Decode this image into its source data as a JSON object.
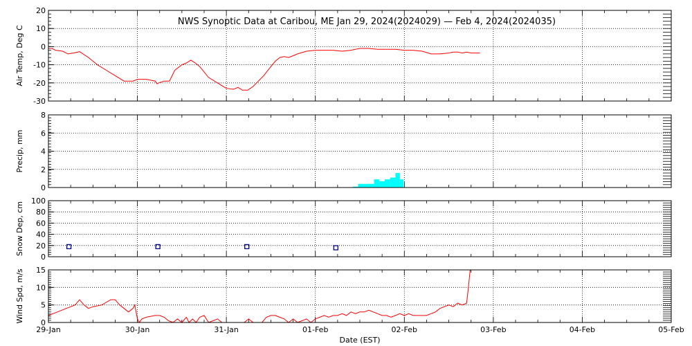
{
  "title": "NWS Synoptic Data at Caribou, ME   Jan 29, 2024(2024029) — Feb  4, 2024(2024035)",
  "xlabel": "Date (EST)",
  "colors": {
    "temp": "#ff0000",
    "precip": "#00ffff",
    "snow": "#00008b",
    "wind": "#ff0000",
    "axis": "#000000"
  },
  "chart_data": [
    {
      "type": "line",
      "ylabel": "Air Temp, Deg C",
      "ylim": [
        -30,
        20
      ],
      "yticks": [
        20,
        10,
        0,
        -10,
        -20,
        -30
      ],
      "x_unit": "days after Jan 29 00:00 EST",
      "series": [
        {
          "x": [
            0,
            0.04,
            0.08,
            0.16,
            0.22,
            0.28,
            0.35,
            0.45,
            0.55,
            0.65,
            0.75,
            0.85,
            0.95,
            1.0,
            1.1,
            1.2,
            1.22,
            1.24,
            1.3,
            1.36,
            1.42,
            1.5,
            1.55,
            1.6,
            1.65,
            1.7,
            1.75,
            1.8,
            1.9,
            2.0,
            2.08,
            2.13,
            2.18,
            2.24,
            2.3,
            2.36,
            2.42,
            2.5,
            2.55,
            2.6,
            2.65,
            2.7,
            2.75,
            2.8,
            2.9,
            3.0,
            3.1,
            3.2,
            3.3,
            3.4,
            3.5,
            3.6,
            3.7,
            3.8,
            3.9,
            4.0,
            4.1,
            4.2,
            4.3,
            4.4,
            4.5,
            4.55,
            4.6,
            4.65,
            4.7,
            4.75,
            4.8,
            4.85
          ],
          "y": [
            -1,
            -1,
            -2,
            -2.5,
            -4,
            -3.5,
            -2.8,
            -6,
            -10,
            -13,
            -16,
            -19,
            -19,
            -18,
            -18,
            -19,
            -20.5,
            -20,
            -19,
            -19,
            -13,
            -10,
            -9,
            -7.5,
            -9,
            -11,
            -14,
            -17,
            -20,
            -23,
            -23.5,
            -22.5,
            -24,
            -24,
            -22,
            -19,
            -16,
            -11,
            -8,
            -6,
            -5.5,
            -6,
            -5,
            -4,
            -2.5,
            -2,
            -2,
            -2,
            -2.5,
            -2,
            -1,
            -1,
            -1.5,
            -1.5,
            -1.5,
            -2,
            -2,
            -2.5,
            -4,
            -4,
            -3.5,
            -3,
            -3,
            -3.5,
            -3,
            -3.5,
            -3.5,
            -3.5
          ]
        }
      ]
    },
    {
      "type": "bar",
      "ylabel": "Precip, mm",
      "ylim": [
        0,
        8
      ],
      "yticks": [
        8,
        6,
        4,
        2,
        0
      ],
      "x_unit": "days after Jan 29 00:00 EST",
      "bars": [
        {
          "x0": 3.42,
          "x1": 3.48,
          "value": 0.1
        },
        {
          "x0": 3.48,
          "x1": 3.54,
          "value": 0.4
        },
        {
          "x0": 3.54,
          "x1": 3.6,
          "value": 0.4
        },
        {
          "x0": 3.6,
          "x1": 3.66,
          "value": 0.4
        },
        {
          "x0": 3.66,
          "x1": 3.72,
          "value": 0.9
        },
        {
          "x0": 3.72,
          "x1": 3.78,
          "value": 0.7
        },
        {
          "x0": 3.78,
          "x1": 3.84,
          "value": 0.9
        },
        {
          "x0": 3.84,
          "x1": 3.9,
          "value": 1.1
        },
        {
          "x0": 3.9,
          "x1": 3.95,
          "value": 1.6
        },
        {
          "x0": 3.95,
          "x1": 3.99,
          "value": 0.9
        }
      ]
    },
    {
      "type": "scatter",
      "ylabel": "Snow Dep, cm",
      "ylim": [
        0,
        100
      ],
      "yticks": [
        100,
        80,
        60,
        40,
        20,
        0
      ],
      "x_unit": "days after Jan 29 00:00 EST",
      "points": [
        {
          "x": 0.23,
          "y": 18
        },
        {
          "x": 1.23,
          "y": 18
        },
        {
          "x": 2.23,
          "y": 18
        },
        {
          "x": 3.23,
          "y": 16
        }
      ]
    },
    {
      "type": "line",
      "ylabel": "Wind Spd, m/s",
      "ylim": [
        0,
        15
      ],
      "yticks": [
        15,
        10,
        5,
        0
      ],
      "x_unit": "days after Jan 29 00:00 EST",
      "xticks": [
        "29-Jan",
        "30-Jan",
        "31-Jan",
        "01-Feb",
        "02-Feb",
        "03-Feb",
        "04-Feb",
        "05-Feb"
      ],
      "series": [
        {
          "x": [
            0,
            0.05,
            0.1,
            0.2,
            0.3,
            0.35,
            0.4,
            0.45,
            0.5,
            0.6,
            0.7,
            0.75,
            0.8,
            0.85,
            0.9,
            0.95,
            0.97,
            1.0,
            1.02,
            1.05,
            1.1,
            1.2,
            1.25,
            1.3,
            1.35,
            1.4,
            1.45,
            1.5,
            1.55,
            1.58,
            1.62,
            1.66,
            1.7,
            1.75,
            1.8,
            1.85,
            1.9,
            1.95,
            2.0,
            2.05,
            2.1,
            2.15,
            2.2,
            2.25,
            2.3,
            2.35,
            2.4,
            2.45,
            2.5,
            2.55,
            2.6,
            2.65,
            2.7,
            2.75,
            2.8,
            2.85,
            2.9,
            2.95,
            3.0,
            3.05,
            3.1,
            3.15,
            3.2,
            3.25,
            3.3,
            3.35,
            3.4,
            3.45,
            3.5,
            3.55,
            3.6,
            3.65,
            3.7,
            3.75,
            3.8,
            3.85,
            3.9,
            3.95,
            4.0,
            4.05,
            4.1,
            4.15,
            4.2,
            4.25,
            4.3,
            4.35,
            4.4,
            4.45,
            4.5,
            4.55,
            4.6,
            4.65,
            4.7,
            4.72,
            4.74
          ],
          "y": [
            2,
            2.5,
            3,
            4,
            5,
            6.5,
            5,
            4,
            4.5,
            5,
            6.5,
            6.5,
            5,
            4,
            3,
            4,
            5,
            1,
            0,
            1,
            1.5,
            2,
            2,
            1.5,
            0.5,
            0,
            1,
            0,
            1.5,
            0,
            1,
            0,
            1.5,
            2,
            0,
            0.5,
            1,
            0,
            0,
            0,
            0,
            0,
            0,
            1,
            0,
            0,
            0,
            1.5,
            2,
            2,
            1.5,
            1,
            0,
            1,
            0,
            0.5,
            1,
            0,
            1,
            1.5,
            2,
            1.5,
            2,
            2,
            2.5,
            2,
            3,
            2.5,
            3,
            3,
            3.5,
            3,
            2.5,
            2,
            2,
            1.5,
            2,
            2.5,
            2,
            2.5,
            2,
            2,
            2,
            2,
            2.5,
            3,
            4,
            4.5,
            5,
            4.5,
            5.5,
            5,
            5.5,
            10,
            15
          ]
        }
      ]
    }
  ]
}
